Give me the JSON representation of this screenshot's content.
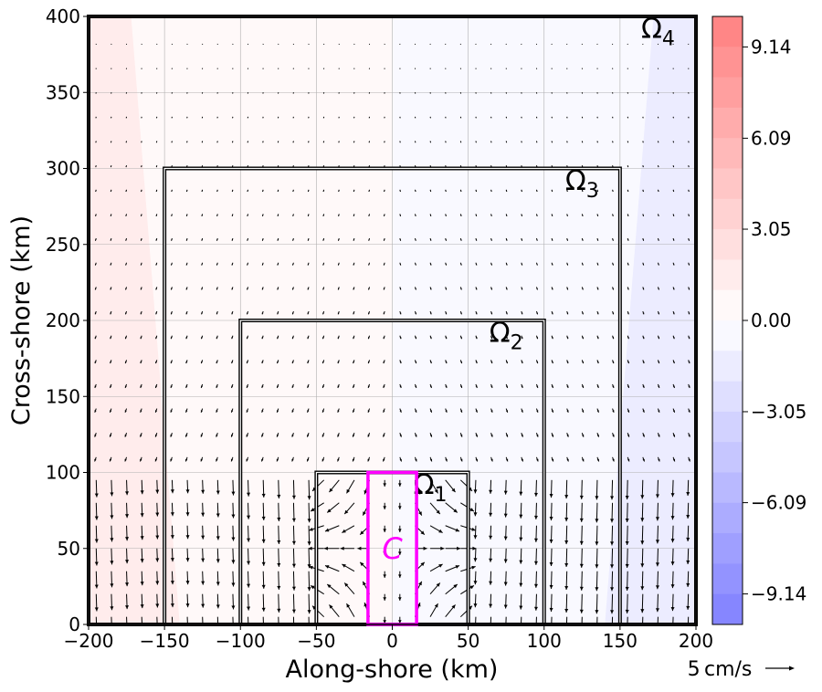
{
  "chart_data": {
    "type": "quiver-contour",
    "xlabel": "Along-shore (km)",
    "ylabel": "Cross-shore (km)",
    "xlim": [
      -200,
      200
    ],
    "ylim": [
      0,
      400
    ],
    "xticks": [
      -200,
      -150,
      -100,
      -50,
      0,
      50,
      100,
      150,
      200
    ],
    "yticks": [
      0,
      50,
      100,
      150,
      200,
      250,
      300,
      350,
      400
    ],
    "xtick_labels": [
      "−200",
      "−150",
      "−100",
      "−50",
      "0",
      "50",
      "100",
      "150",
      "200"
    ],
    "ytick_labels": [
      "0",
      "50",
      "100",
      "150",
      "200",
      "250",
      "300",
      "350",
      "400"
    ],
    "grid": true,
    "colorbar": {
      "range": [
        -10.16,
        10.16
      ],
      "ticks": [
        9.14,
        6.09,
        3.05,
        0.0,
        -3.05,
        -6.09,
        -9.14
      ],
      "tick_labels": [
        "9.14",
        "6.09",
        "3.05",
        "0.00",
        "−3.05",
        "−6.09",
        "−9.14"
      ],
      "levels": 20,
      "positive_color": "#ff0000",
      "negative_color": "#0000ff",
      "alpha": 0.5
    },
    "field_regions": [
      {
        "x_from": -200,
        "x_to": -150,
        "value": 1.5,
        "note": "left outer band"
      },
      {
        "x_from": -150,
        "x_to": 0,
        "value": 0.5
      },
      {
        "x_from": 0,
        "x_to": 150,
        "value": -0.5
      },
      {
        "x_from": 150,
        "x_to": 200,
        "value": -1.5
      }
    ],
    "domains": [
      {
        "label": "Ω",
        "sub": "1",
        "x": [
          -50,
          50
        ],
        "y": [
          0,
          100
        ],
        "label_at": [
          25,
          92
        ]
      },
      {
        "label": "Ω",
        "sub": "2",
        "x": [
          -100,
          100
        ],
        "y": [
          0,
          200
        ],
        "label_at": [
          75,
          192
        ]
      },
      {
        "label": "Ω",
        "sub": "3",
        "x": [
          -150,
          150
        ],
        "y": [
          0,
          300
        ],
        "label_at": [
          125,
          292
        ]
      },
      {
        "label": "Ω",
        "sub": "4",
        "x": [
          -200,
          200
        ],
        "y": [
          0,
          400
        ],
        "label_at": [
          175,
          392
        ]
      }
    ],
    "channel": {
      "label": "C",
      "x": [
        -16,
        16
      ],
      "y": [
        0,
        100
      ],
      "color": "#ff00ff"
    },
    "quiver_key": {
      "label": "5 cm/s",
      "value": 5
    },
    "quiver_grid": {
      "dx": 10,
      "dy": 10
    }
  },
  "colors": {
    "frame": "#000000",
    "grid": "#b0b0b0",
    "channel": "#ff00ff"
  }
}
